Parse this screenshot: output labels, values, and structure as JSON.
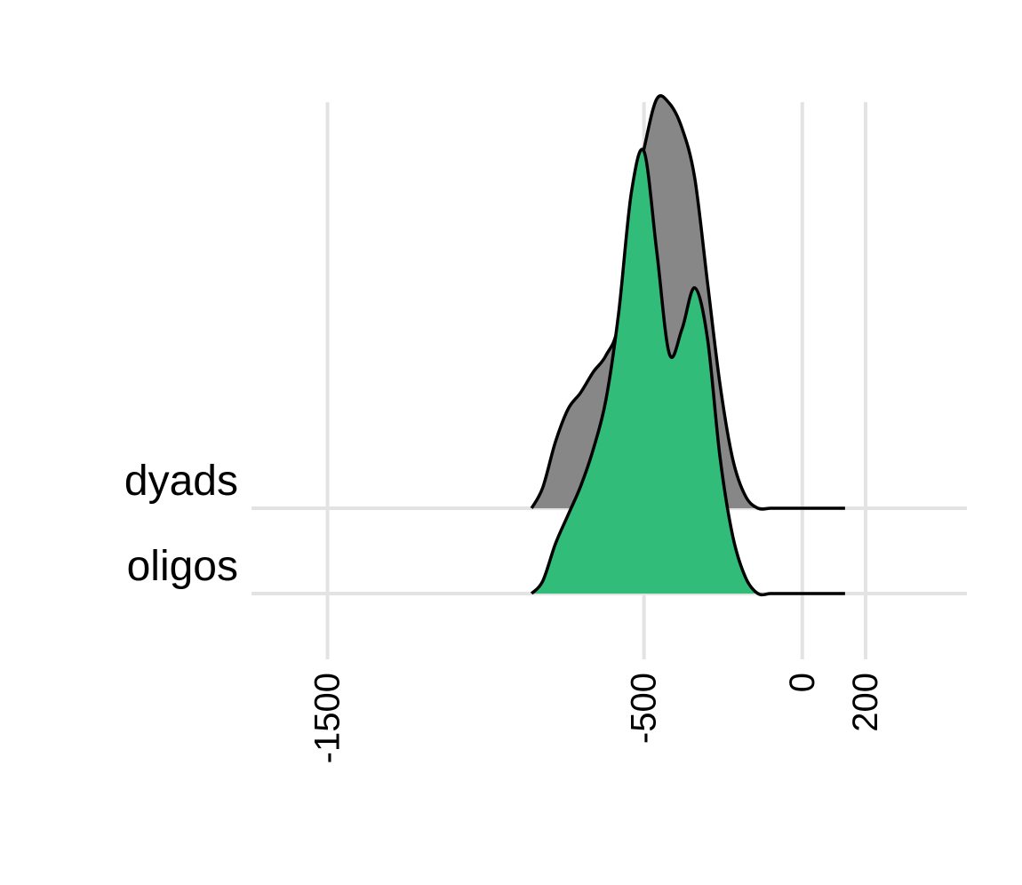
{
  "chart_data": {
    "type": "area",
    "subtype": "ridgeline",
    "title": "",
    "xlabel": "",
    "ylabel": "",
    "xlim": [
      -1740,
      520
    ],
    "xticks": [
      -1500,
      -500,
      0,
      200
    ],
    "x_tick_labels": [
      "-1500",
      "-500",
      "0",
      "200"
    ],
    "grid": true,
    "legend": "none",
    "categories": [
      "dyads",
      "oligos"
    ],
    "series": [
      {
        "name": "dyads",
        "color": "#878787",
        "x": [
          -855,
          -820,
          -780,
          -740,
          -700,
          -660,
          -620,
          -580,
          -540,
          -500,
          -460,
          -420,
          -380,
          -340,
          -300,
          -260,
          -220,
          -180,
          -140,
          -100,
          -60,
          -20,
          20,
          60,
          100,
          135
        ],
        "density": [
          0.0,
          0.05,
          0.16,
          0.24,
          0.28,
          0.33,
          0.37,
          0.45,
          0.72,
          0.87,
          0.99,
          0.98,
          0.92,
          0.8,
          0.55,
          0.3,
          0.12,
          0.03,
          0.0,
          0.0,
          0.0,
          0.0,
          0.0,
          0.0,
          0.0,
          0.0
        ]
      },
      {
        "name": "oligos",
        "color": "#32bc7a",
        "x": [
          -855,
          -820,
          -780,
          -740,
          -700,
          -660,
          -620,
          -580,
          -540,
          -500,
          -460,
          -420,
          -380,
          -340,
          -300,
          -260,
          -220,
          -180,
          -140,
          -100,
          -60,
          -20,
          20,
          60,
          100,
          135
        ],
        "density": [
          0.0,
          0.03,
          0.12,
          0.19,
          0.26,
          0.35,
          0.47,
          0.68,
          0.97,
          1.07,
          0.83,
          0.58,
          0.64,
          0.74,
          0.62,
          0.33,
          0.14,
          0.04,
          0.0,
          0.0,
          0.0,
          0.0,
          0.0,
          0.0,
          0.0,
          0.0
        ]
      }
    ]
  }
}
